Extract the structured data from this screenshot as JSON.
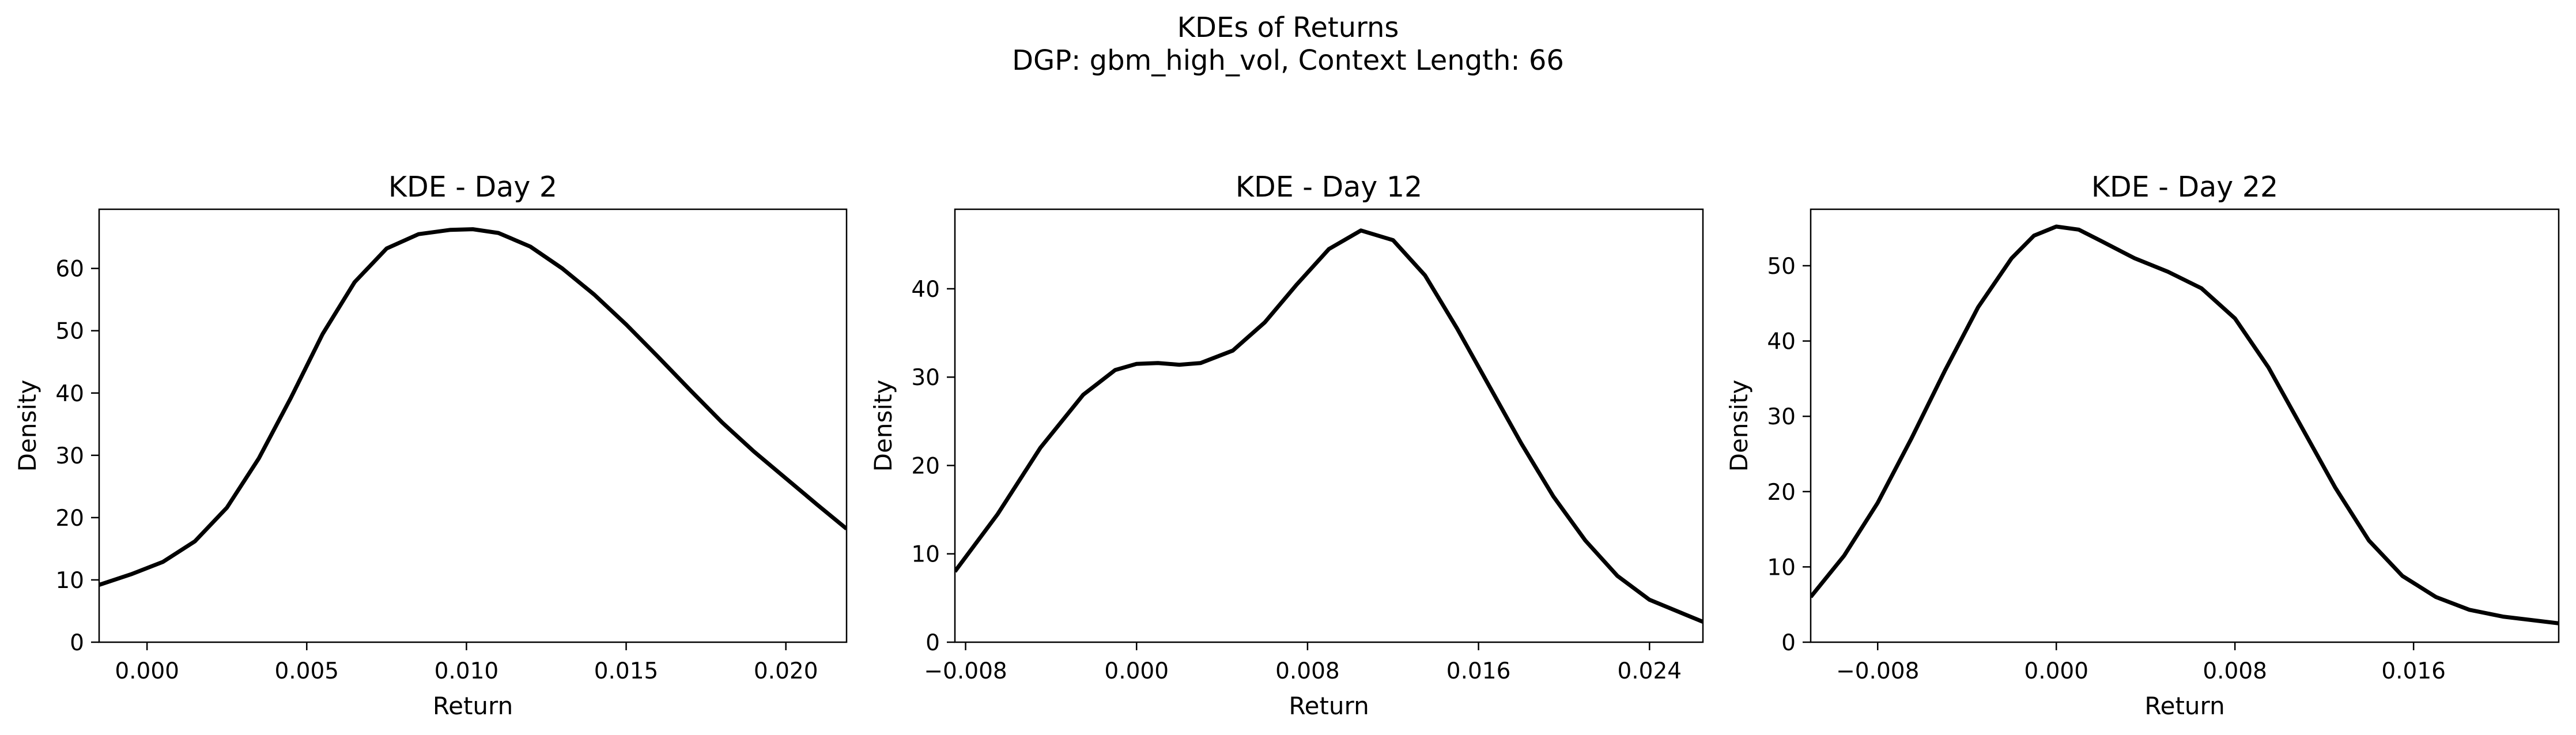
{
  "figure": {
    "title": "KDEs of Returns",
    "subtitle": "DGP: gbm_high_vol, Context Length: 66"
  },
  "chart_data": [
    {
      "type": "line",
      "title": "KDE - Day 2",
      "xlabel": "Return",
      "ylabel": "Density",
      "xlim": [
        -0.0015,
        0.0219
      ],
      "ylim": [
        0,
        69.5
      ],
      "xticks": [
        0.0,
        0.005,
        0.01,
        0.015,
        0.02
      ],
      "xtick_labels": [
        "0.000",
        "0.005",
        "0.010",
        "0.015",
        "0.020"
      ],
      "yticks": [
        0,
        10,
        20,
        30,
        40,
        50,
        60
      ],
      "ytick_labels": [
        "0",
        "10",
        "20",
        "30",
        "40",
        "50",
        "60"
      ],
      "grid": false,
      "series": [
        {
          "color": "#000000",
          "x": [
            -0.0015,
            -0.0005,
            0.0005,
            0.0015,
            0.0025,
            0.0035,
            0.0045,
            0.0055,
            0.0065,
            0.0075,
            0.0085,
            0.0095,
            0.0102,
            0.011,
            0.012,
            0.013,
            0.014,
            0.015,
            0.016,
            0.017,
            0.018,
            0.019,
            0.02,
            0.021,
            0.0219
          ],
          "y": [
            9.2,
            10.9,
            12.9,
            16.2,
            21.6,
            29.5,
            39.2,
            49.5,
            57.8,
            63.2,
            65.5,
            66.2,
            66.3,
            65.7,
            63.5,
            60.0,
            55.8,
            51.0,
            45.8,
            40.5,
            35.3,
            30.6,
            26.3,
            22.0,
            18.2
          ]
        }
      ]
    },
    {
      "type": "line",
      "title": "KDE - Day 12",
      "xlabel": "Return",
      "ylabel": "Density",
      "xlim": [
        -0.0085,
        0.0265
      ],
      "ylim": [
        0,
        49
      ],
      "xticks": [
        -0.008,
        0.0,
        0.008,
        0.016,
        0.024
      ],
      "xtick_labels": [
        "−0.008",
        "0.000",
        "0.008",
        "0.016",
        "0.024"
      ],
      "yticks": [
        0,
        10,
        20,
        30,
        40
      ],
      "ytick_labels": [
        "0",
        "10",
        "20",
        "30",
        "40"
      ],
      "grid": false,
      "series": [
        {
          "color": "#000000",
          "x": [
            -0.0085,
            -0.0065,
            -0.0045,
            -0.0025,
            -0.001,
            0.0,
            0.001,
            0.002,
            0.003,
            0.0045,
            0.006,
            0.0075,
            0.009,
            0.0105,
            0.012,
            0.0135,
            0.015,
            0.0165,
            0.018,
            0.0195,
            0.021,
            0.0225,
            0.024,
            0.0265
          ],
          "y": [
            8.0,
            14.5,
            22.0,
            28.0,
            30.8,
            31.5,
            31.6,
            31.4,
            31.6,
            33.0,
            36.2,
            40.5,
            44.5,
            46.6,
            45.5,
            41.5,
            35.5,
            29.0,
            22.5,
            16.5,
            11.5,
            7.5,
            4.8,
            2.3
          ]
        }
      ]
    },
    {
      "type": "line",
      "title": "KDE - Day 22",
      "xlabel": "Return",
      "ylabel": "Density",
      "xlim": [
        -0.011,
        0.0225
      ],
      "ylim": [
        0,
        57.5
      ],
      "xticks": [
        -0.008,
        0.0,
        0.008,
        0.016
      ],
      "xtick_labels": [
        "−0.008",
        "0.000",
        "0.008",
        "0.016"
      ],
      "yticks": [
        0,
        10,
        20,
        30,
        40,
        50
      ],
      "ytick_labels": [
        "0",
        "10",
        "20",
        "30",
        "40",
        "50"
      ],
      "grid": false,
      "series": [
        {
          "color": "#000000",
          "x": [
            -0.011,
            -0.0095,
            -0.008,
            -0.0065,
            -0.005,
            -0.0035,
            -0.002,
            -0.001,
            0.0,
            0.001,
            0.002,
            0.0035,
            0.005,
            0.0065,
            0.008,
            0.0095,
            0.011,
            0.0125,
            0.014,
            0.0155,
            0.017,
            0.0185,
            0.02,
            0.0225
          ],
          "y": [
            6.0,
            11.5,
            18.5,
            27.0,
            36.0,
            44.5,
            51.0,
            54.0,
            55.2,
            54.8,
            53.3,
            51.0,
            49.2,
            47.0,
            43.0,
            36.5,
            28.5,
            20.5,
            13.5,
            8.8,
            6.0,
            4.3,
            3.4,
            2.5
          ]
        }
      ]
    }
  ]
}
